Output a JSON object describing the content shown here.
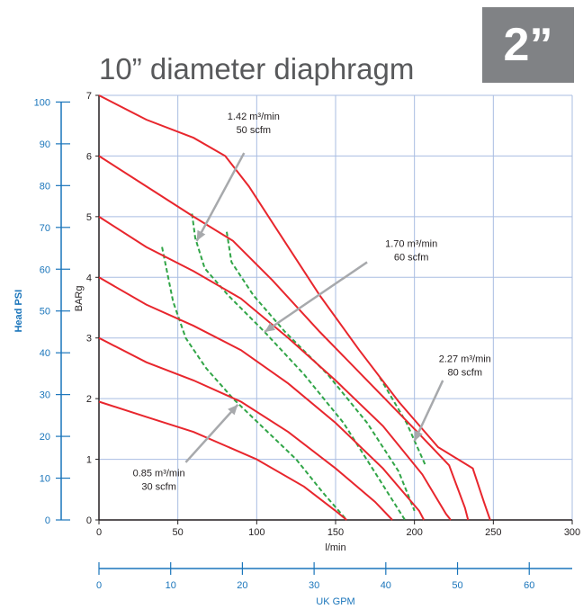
{
  "size_label": "2”",
  "chart_data": {
    "type": "line",
    "title": "10” diameter diaphragm",
    "x_axis": {
      "label": "l/min",
      "range": [
        0,
        300
      ],
      "ticks": [
        0,
        50,
        100,
        150,
        200,
        250,
        300
      ],
      "tick_labels": [
        "0",
        "50",
        "100",
        "150",
        "200",
        "250",
        "300"
      ]
    },
    "x2_axis": {
      "label": "UK GPM",
      "ticks": [
        0,
        10,
        20,
        30,
        40,
        50,
        60
      ],
      "tick_labels": [
        "0",
        "10",
        "20",
        "30",
        "40",
        "50",
        "60"
      ],
      "lpm_per_unit": 4.546
    },
    "y_axis": {
      "label": "BARg",
      "range": [
        0,
        7
      ],
      "ticks": [
        0,
        1,
        2,
        3,
        4,
        5,
        6,
        7
      ],
      "tick_labels": [
        "0",
        "1",
        "2",
        "3",
        "4",
        "5",
        "6",
        "7"
      ]
    },
    "y2_axis": {
      "label": "Head PSI",
      "range": [
        0,
        100
      ],
      "ticks": [
        0,
        10,
        20,
        30,
        40,
        50,
        60,
        70,
        80,
        90,
        100
      ],
      "tick_labels": [
        "0",
        "10",
        "20",
        "30",
        "40",
        "50",
        "60",
        "70",
        "80",
        "90",
        "100"
      ],
      "bar_per_unit": 0.0689
    },
    "grid": true,
    "colors": {
      "pressure_curve": "#e8262d",
      "air_consumption": "#31a547",
      "grid": "#a9bde2",
      "axis": "#1a75bb",
      "arrow": "#a7a9ac"
    },
    "pressure_curves": [
      {
        "points": [
          [
            0,
            7.0
          ],
          [
            30,
            6.6
          ],
          [
            60,
            6.3
          ],
          [
            80,
            6.0
          ],
          [
            95,
            5.5
          ],
          [
            115,
            4.7
          ],
          [
            140,
            3.7
          ],
          [
            165,
            2.8
          ],
          [
            190,
            1.95
          ],
          [
            215,
            1.2
          ],
          [
            237,
            0.85
          ],
          [
            244,
            0.3
          ],
          [
            248,
            0
          ]
        ]
      },
      {
        "points": [
          [
            0,
            6.0
          ],
          [
            30,
            5.5
          ],
          [
            60,
            5.0
          ],
          [
            85,
            4.6
          ],
          [
            110,
            3.95
          ],
          [
            140,
            3.1
          ],
          [
            170,
            2.3
          ],
          [
            200,
            1.5
          ],
          [
            222,
            0.9
          ],
          [
            232,
            0.2
          ],
          [
            234,
            0
          ]
        ]
      },
      {
        "points": [
          [
            0,
            5.0
          ],
          [
            30,
            4.5
          ],
          [
            60,
            4.1
          ],
          [
            90,
            3.65
          ],
          [
            120,
            3.0
          ],
          [
            150,
            2.3
          ],
          [
            180,
            1.55
          ],
          [
            205,
            0.75
          ],
          [
            220,
            0.1
          ],
          [
            223,
            0
          ]
        ]
      },
      {
        "points": [
          [
            0,
            4.0
          ],
          [
            30,
            3.55
          ],
          [
            60,
            3.2
          ],
          [
            90,
            2.8
          ],
          [
            120,
            2.25
          ],
          [
            150,
            1.6
          ],
          [
            180,
            0.85
          ],
          [
            203,
            0.15
          ],
          [
            206,
            0
          ]
        ]
      },
      {
        "points": [
          [
            0,
            3.0
          ],
          [
            30,
            2.6
          ],
          [
            60,
            2.3
          ],
          [
            90,
            1.95
          ],
          [
            120,
            1.45
          ],
          [
            150,
            0.85
          ],
          [
            175,
            0.3
          ],
          [
            186,
            0
          ]
        ]
      },
      {
        "points": [
          [
            0,
            1.95
          ],
          [
            30,
            1.7
          ],
          [
            60,
            1.45
          ],
          [
            100,
            1.0
          ],
          [
            130,
            0.55
          ],
          [
            150,
            0.15
          ],
          [
            157,
            0
          ]
        ]
      }
    ],
    "air_consumption_lines": [
      {
        "label": "0.85 m³/min 30 scfm",
        "points": [
          [
            40,
            4.5
          ],
          [
            47,
            3.6
          ],
          [
            55,
            3.0
          ],
          [
            68,
            2.5
          ],
          [
            85,
            2.0
          ],
          [
            105,
            1.5
          ],
          [
            125,
            1.0
          ],
          [
            142,
            0.45
          ],
          [
            157,
            0
          ]
        ]
      },
      {
        "label": "1.42 m³/min 50 scfm",
        "points": [
          [
            59,
            5.05
          ],
          [
            61,
            4.65
          ],
          [
            67,
            4.15
          ],
          [
            82,
            3.7
          ],
          [
            105,
            3.1
          ],
          [
            130,
            2.4
          ],
          [
            155,
            1.6
          ],
          [
            177,
            0.7
          ],
          [
            194,
            0
          ]
        ]
      },
      {
        "label": "1.70 m³/min 60 scfm",
        "points": [
          [
            81,
            4.75
          ],
          [
            84,
            4.25
          ],
          [
            98,
            3.7
          ],
          [
            118,
            3.1
          ],
          [
            145,
            2.4
          ],
          [
            170,
            1.6
          ],
          [
            190,
            0.8
          ],
          [
            200,
            0.15
          ]
        ]
      },
      {
        "label": "2.27 m³/min 80 scfm",
        "points": [
          [
            178,
            2.35
          ],
          [
            195,
            1.6
          ],
          [
            207,
            0.9
          ]
        ]
      }
    ],
    "annotations": [
      {
        "line1": "1.42 m³/min",
        "line2": "50 scfm"
      },
      {
        "line1": "1.70 m³/min",
        "line2": "60 scfm"
      },
      {
        "line1": "2.27 m³/min",
        "line2": "80 scfm"
      },
      {
        "line1": "0.85 m³/min",
        "line2": "30 scfm"
      }
    ]
  }
}
